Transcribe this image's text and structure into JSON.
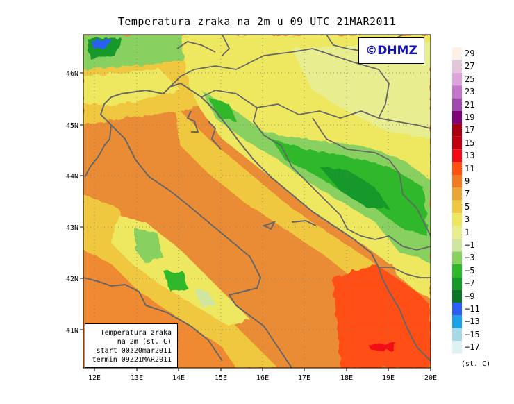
{
  "title": "Temperatura zraka na 2m u 09 UTC 21MAR2011",
  "logo": "©DHMZ",
  "info": {
    "line1": "Temperatura zraka",
    "line2": "na 2m (st. C)",
    "line3": "start 00z20mar2011",
    "line4": "termin 09Z21MAR2011"
  },
  "axes": {
    "lon_labels": [
      "12E",
      "13E",
      "14E",
      "15E",
      "16E",
      "17E",
      "18E",
      "19E",
      "20E"
    ],
    "lat_labels": [
      "46N",
      "45N",
      "44N",
      "43N",
      "42N",
      "41N"
    ]
  },
  "legend": {
    "unit": "(st. C)",
    "labels": [
      "29",
      "27",
      "25",
      "23",
      "21",
      "19",
      "17",
      "15",
      "13",
      "11",
      "9",
      "7",
      "5",
      "3",
      "1",
      "−1",
      "−3",
      "−5",
      "−7",
      "−9",
      "−11",
      "−13",
      "−15",
      "−17"
    ],
    "colors": [
      "#fdf0e6",
      "#e2c6d9",
      "#dba4da",
      "#c277c9",
      "#a04ab0",
      "#7e0478",
      "#a80010",
      "#c00010",
      "#f20a16",
      "#ff5012",
      "#f27a20",
      "#eba437",
      "#f0c840",
      "#eee860",
      "#e8ee90",
      "#cfe6a0",
      "#88d060",
      "#2eb82a",
      "#16982a",
      "#0b7428",
      "#2c5ef5",
      "#1ea2e6",
      "#a6d8e6",
      "#def2f6"
    ]
  }
}
